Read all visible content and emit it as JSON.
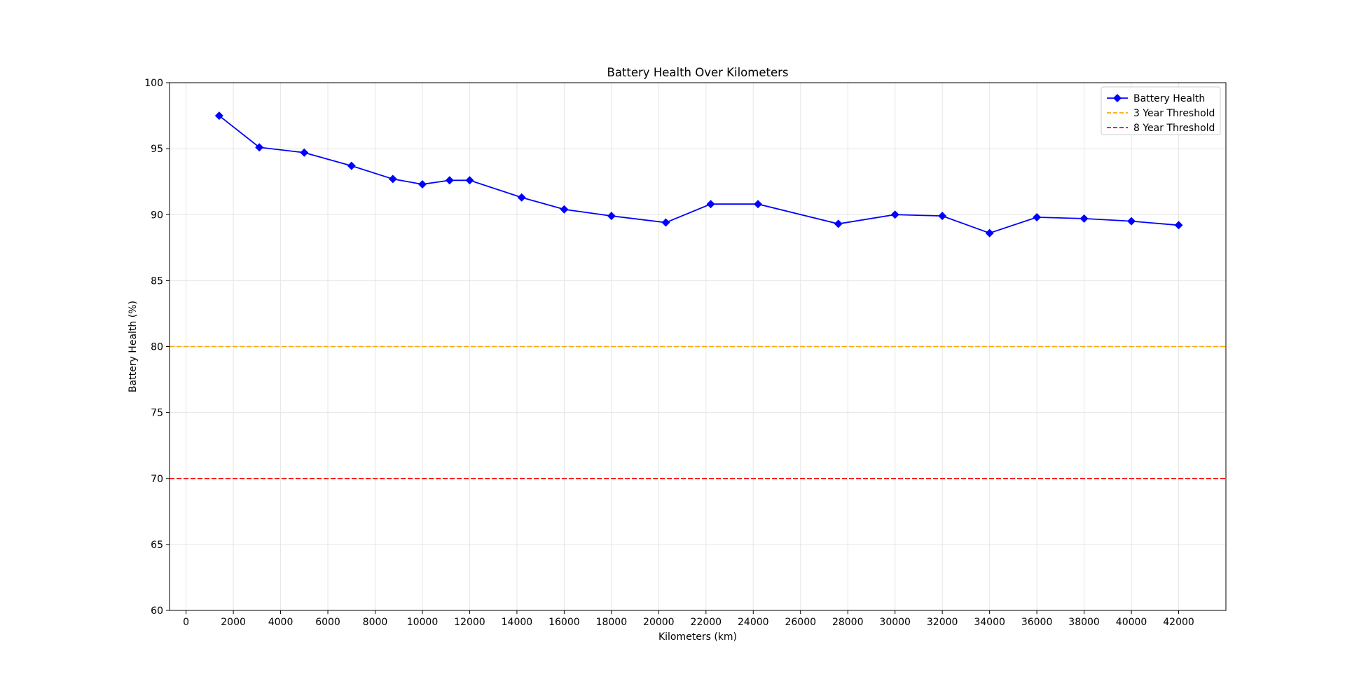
{
  "chart_data": {
    "type": "line",
    "title": "Battery Health Over Kilometers",
    "xlabel": "Kilometers (km)",
    "ylabel": "Battery Health (%)",
    "xlim": [
      -700,
      44000
    ],
    "ylim": [
      60,
      100
    ],
    "xticks": [
      0,
      2000,
      4000,
      6000,
      8000,
      10000,
      12000,
      14000,
      16000,
      18000,
      20000,
      22000,
      24000,
      26000,
      28000,
      30000,
      32000,
      34000,
      36000,
      38000,
      40000,
      42000
    ],
    "yticks": [
      60,
      65,
      70,
      75,
      80,
      85,
      90,
      95,
      100
    ],
    "grid": true,
    "legend_position": "top-right",
    "series": [
      {
        "name": "Battery Health",
        "color": "#0000ff",
        "marker": "diamond",
        "x": [
          1400,
          3100,
          5000,
          7000,
          8750,
          10000,
          11150,
          12000,
          14200,
          16000,
          18000,
          20300,
          22200,
          24200,
          27600,
          30000,
          32000,
          34000,
          36000,
          38000,
          40000,
          42000
        ],
        "values": [
          97.5,
          95.1,
          94.7,
          93.7,
          92.7,
          92.3,
          92.6,
          92.6,
          91.3,
          90.4,
          89.9,
          89.4,
          90.8,
          90.8,
          89.3,
          90.0,
          89.9,
          88.6,
          89.8,
          89.7,
          89.5,
          89.2
        ]
      }
    ],
    "reference_lines": [
      {
        "name": "3 Year Threshold",
        "value": 80,
        "color": "#ffa500",
        "style": "dashed"
      },
      {
        "name": "8 Year Threshold",
        "value": 70,
        "color": "#ff0000",
        "style": "dashed"
      }
    ]
  }
}
